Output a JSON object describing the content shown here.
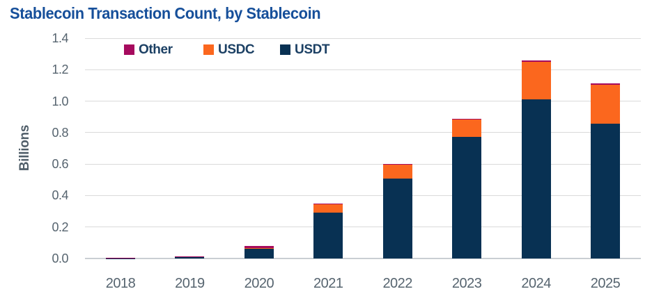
{
  "title": "Stablecoin Transaction Count, by Stablecoin",
  "chart_data": {
    "type": "bar",
    "stacked": true,
    "title": "Stablecoin Transaction Count, by Stablecoin",
    "xlabel": "",
    "ylabel": "Billions",
    "ylim": [
      0,
      1.4
    ],
    "ytick_step": 0.2,
    "yticks": [
      "0.0",
      "0.2",
      "0.4",
      "0.6",
      "0.8",
      "1.0",
      "1.2",
      "1.4"
    ],
    "grid": "horizontal",
    "categories": [
      "2018",
      "2019",
      "2020",
      "2021",
      "2022",
      "2023",
      "2024",
      "2025"
    ],
    "series": [
      {
        "name": "USDT",
        "color": "#083153",
        "values": [
          0.002,
          0.01,
          0.06,
          0.29,
          0.51,
          0.775,
          1.01,
          0.855
        ]
      },
      {
        "name": "USDC",
        "color": "#fb671e",
        "values": [
          0.001,
          0.002,
          0.008,
          0.055,
          0.085,
          0.11,
          0.24,
          0.25
        ]
      },
      {
        "name": "Other",
        "color": "#a60a5e",
        "values": [
          0.002,
          0.003,
          0.01,
          0.005,
          0.005,
          0.005,
          0.008,
          0.008
        ]
      }
    ],
    "stack_order": "series order bottom-to-top",
    "legend": {
      "position": "top-inside",
      "items": [
        {
          "label": "Other",
          "color": "#a60a5e"
        },
        {
          "label": "USDC",
          "color": "#fb671e"
        },
        {
          "label": "USDT",
          "color": "#083153"
        }
      ]
    }
  },
  "colors": {
    "title_text": "#164f9a",
    "axis_text": "#56646f",
    "gridline": "#dadada",
    "axis_line": "#c9ced3",
    "background": "#ffffff"
  }
}
